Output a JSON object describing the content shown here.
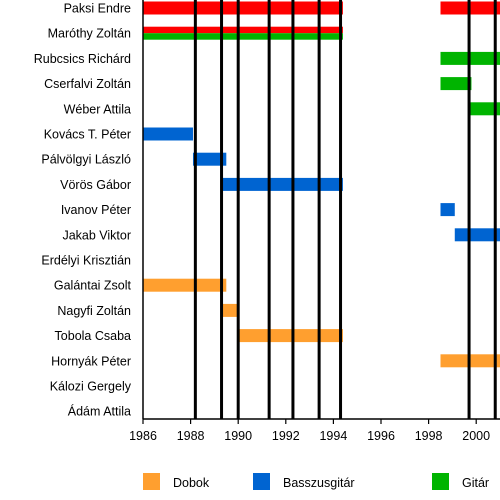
{
  "chart_data": {
    "type": "timeline",
    "title": "",
    "xlabel": "",
    "ylabel": "",
    "xlim": [
      1986,
      2001
    ],
    "x_ticks": [
      "1986",
      "1988",
      "1990",
      "1992",
      "1994",
      "1996",
      "1998",
      "2000"
    ],
    "event_lines": [
      1988.2,
      1989.3,
      1990.0,
      1991.3,
      1992.3,
      1993.4,
      1994.3,
      1999.7,
      2000.8
    ],
    "legend": [
      {
        "key": "dobok",
        "label": "Dobok",
        "color": "#ff9f2f"
      },
      {
        "key": "bass",
        "label": "Basszusgitár",
        "color": "#0064d1"
      },
      {
        "key": "gitar",
        "label": "Gitár",
        "color": "#00b400"
      }
    ],
    "members": [
      {
        "name": "Paksi Endre",
        "bars": [
          {
            "role": "vocal",
            "color": "#ff0000",
            "start": 1986,
            "end": 1994.4
          },
          {
            "role": "vocal",
            "color": "#ff0000",
            "start": 1998.5,
            "end": 2001
          }
        ]
      },
      {
        "name": "Maróthy Zoltán",
        "bars": [
          {
            "role": "vocal+gitar",
            "color": "#ff0000",
            "color2": "#00b400",
            "start": 1986,
            "end": 1994.4
          }
        ]
      },
      {
        "name": "Rubcsics Richárd",
        "bars": [
          {
            "role": "gitar",
            "color": "#00b400",
            "start": 1998.5,
            "end": 2001
          }
        ]
      },
      {
        "name": "Cserfalvi Zoltán",
        "bars": [
          {
            "role": "gitar",
            "color": "#00b400",
            "start": 1998.5,
            "end": 1999.8
          }
        ]
      },
      {
        "name": "Wéber Attila",
        "bars": [
          {
            "role": "gitar",
            "color": "#00b400",
            "start": 1999.7,
            "end": 2001
          }
        ]
      },
      {
        "name": "Kovács T. Péter",
        "bars": [
          {
            "role": "bass",
            "color": "#0064d1",
            "start": 1986,
            "end": 1988.1
          }
        ]
      },
      {
        "name": "Pálvölgyi László",
        "bars": [
          {
            "role": "bass",
            "color": "#0064d1",
            "start": 1988.1,
            "end": 1989.5
          }
        ]
      },
      {
        "name": "Vörös Gábor",
        "bars": [
          {
            "role": "bass",
            "color": "#0064d1",
            "start": 1989.3,
            "end": 1994.4
          }
        ]
      },
      {
        "name": "Ivanov Péter",
        "bars": [
          {
            "role": "bass",
            "color": "#0064d1",
            "start": 1998.5,
            "end": 1999.1
          }
        ]
      },
      {
        "name": "Jakab Viktor",
        "bars": [
          {
            "role": "bass",
            "color": "#0064d1",
            "start": 1999.1,
            "end": 2001
          }
        ]
      },
      {
        "name": "Erdélyi Krisztián",
        "bars": []
      },
      {
        "name": "Galántai Zsolt",
        "bars": [
          {
            "role": "dobok",
            "color": "#ff9f2f",
            "start": 1986,
            "end": 1989.5
          }
        ]
      },
      {
        "name": "Nagyfi Zoltán",
        "bars": [
          {
            "role": "dobok",
            "color": "#ff9f2f",
            "start": 1989.3,
            "end": 1990.0
          }
        ]
      },
      {
        "name": "Tobola Csaba",
        "bars": [
          {
            "role": "dobok",
            "color": "#ff9f2f",
            "start": 1990.0,
            "end": 1994.4
          }
        ]
      },
      {
        "name": "Hornyák Péter",
        "bars": [
          {
            "role": "dobok",
            "color": "#ff9f2f",
            "start": 1998.5,
            "end": 2001
          }
        ]
      },
      {
        "name": "Kálozi Gergely",
        "bars": []
      },
      {
        "name": "Ádám Attila",
        "bars": []
      }
    ]
  }
}
